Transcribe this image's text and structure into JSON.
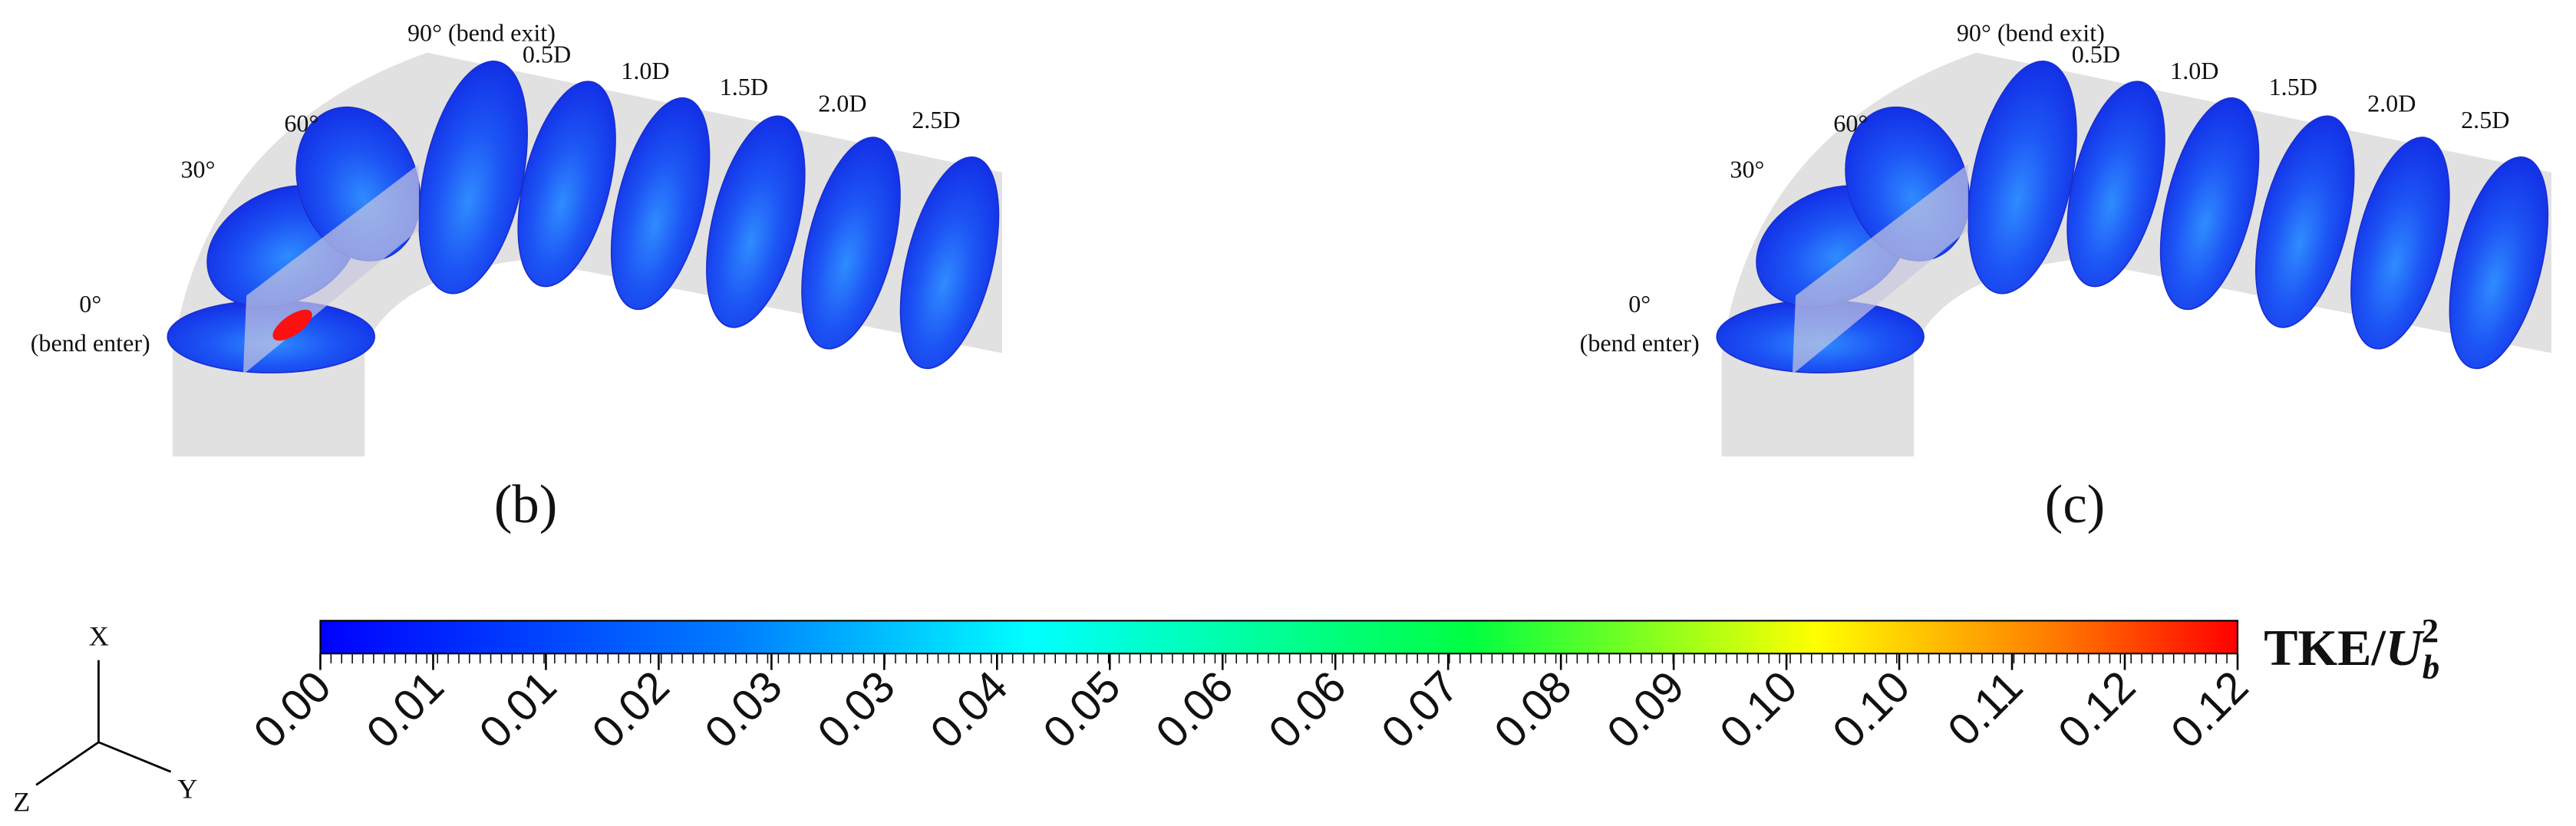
{
  "panels": [
    {
      "label": "(b)",
      "stations": [
        "0°",
        "(bend enter)",
        "30°",
        "60°",
        "90° (bend exit)",
        "0.5D",
        "1.0D",
        "1.5D",
        "2.0D",
        "2.5D"
      ]
    },
    {
      "label": "(c)",
      "stations": [
        "0°",
        "(bend enter)",
        "30°",
        "60°",
        "90° (bend exit)",
        "0.5D",
        "1.0D",
        "1.5D",
        "2.0D",
        "2.5D"
      ]
    }
  ],
  "colorbar": {
    "title": "TKE/",
    "variable": "U",
    "subscript": "b",
    "superscript": "2",
    "tick_labels": [
      "0.00",
      "0.01",
      "0.01",
      "0.02",
      "0.03",
      "0.03",
      "0.04",
      "0.05",
      "0.06",
      "0.06",
      "0.07",
      "0.08",
      "0.09",
      "0.10",
      "0.10",
      "0.11",
      "0.12",
      "0.12"
    ]
  },
  "axes": {
    "x": "X",
    "y": "Y",
    "z": "Z"
  }
}
